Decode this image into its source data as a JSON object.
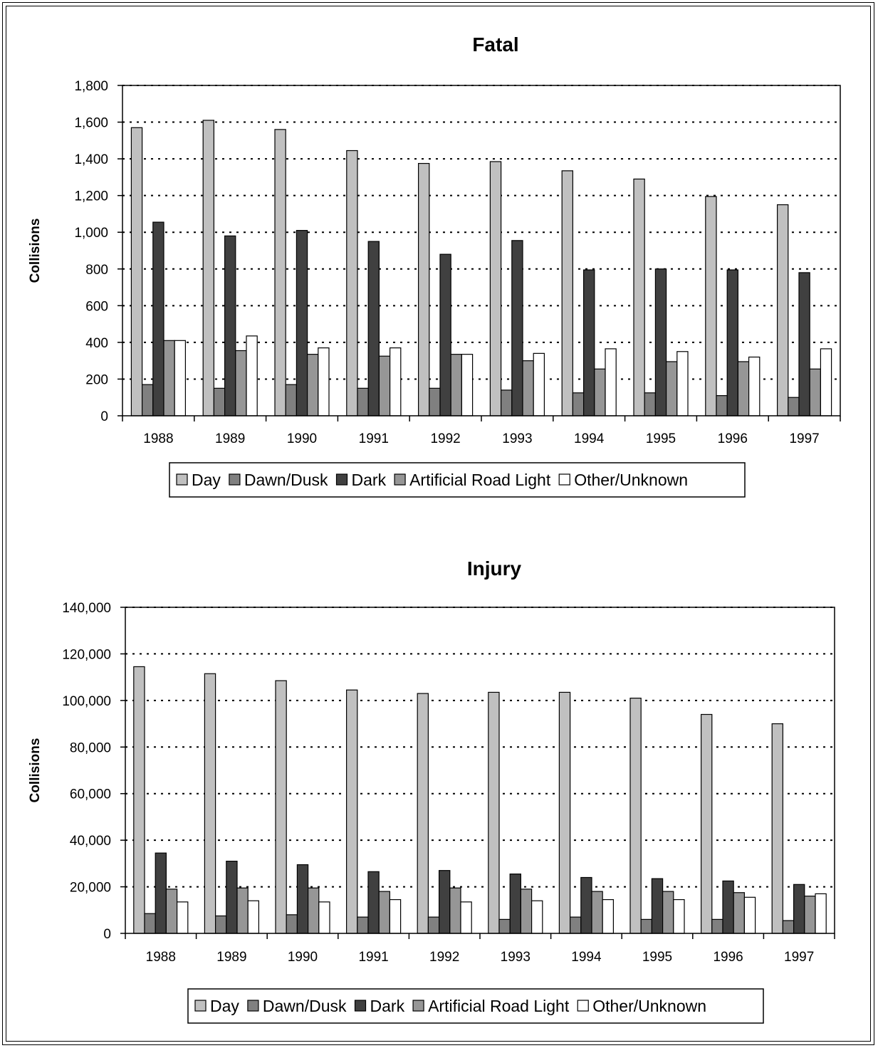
{
  "colors": {
    "Day": "#c0c0c0",
    "Dawn/Dusk": "#808080",
    "Dark": "#404040",
    "Artificial Road Light": "#969696",
    "Other/Unknown": "#ffffff"
  },
  "chart_data": [
    {
      "type": "bar",
      "title": "Fatal",
      "ylabel": "Collisions",
      "xlabel": "",
      "ylim": [
        0,
        1800
      ],
      "ytick_step": 200,
      "grid": true,
      "legend_position": "bottom",
      "categories": [
        "1988",
        "1989",
        "1990",
        "1991",
        "1992",
        "1993",
        "1994",
        "1995",
        "1996",
        "1997"
      ],
      "series": [
        {
          "name": "Day",
          "values": [
            1570,
            1610,
            1560,
            1445,
            1375,
            1385,
            1335,
            1290,
            1195,
            1150
          ]
        },
        {
          "name": "Dawn/Dusk",
          "values": [
            170,
            150,
            170,
            150,
            150,
            140,
            125,
            125,
            110,
            100
          ]
        },
        {
          "name": "Dark",
          "values": [
            1055,
            980,
            1010,
            950,
            880,
            955,
            795,
            800,
            795,
            780
          ]
        },
        {
          "name": "Artificial Road Light",
          "values": [
            410,
            355,
            335,
            325,
            335,
            300,
            255,
            295,
            295,
            255
          ]
        },
        {
          "name": "Other/Unknown",
          "values": [
            410,
            435,
            370,
            370,
            335,
            340,
            365,
            350,
            320,
            365
          ]
        }
      ]
    },
    {
      "type": "bar",
      "title": "Injury",
      "ylabel": "Collisions",
      "xlabel": "",
      "ylim": [
        0,
        140000
      ],
      "ytick_step": 20000,
      "grid": true,
      "legend_position": "bottom",
      "categories": [
        "1988",
        "1989",
        "1990",
        "1991",
        "1992",
        "1993",
        "1994",
        "1995",
        "1996",
        "1997"
      ],
      "series": [
        {
          "name": "Day",
          "values": [
            114500,
            111500,
            108500,
            104500,
            103000,
            103500,
            103500,
            101000,
            94000,
            90000
          ]
        },
        {
          "name": "Dawn/Dusk",
          "values": [
            8500,
            7500,
            8000,
            7000,
            7000,
            6000,
            7000,
            6000,
            6000,
            5500
          ]
        },
        {
          "name": "Dark",
          "values": [
            34500,
            31000,
            29500,
            26500,
            27000,
            25500,
            24000,
            23500,
            22500,
            21000
          ]
        },
        {
          "name": "Artificial Road Light",
          "values": [
            19000,
            19500,
            19500,
            18000,
            19500,
            19000,
            18000,
            18000,
            17500,
            16000
          ]
        },
        {
          "name": "Other/Unknown",
          "values": [
            13500,
            14000,
            13500,
            14500,
            13500,
            14000,
            14500,
            14500,
            15500,
            17000
          ]
        }
      ]
    }
  ]
}
